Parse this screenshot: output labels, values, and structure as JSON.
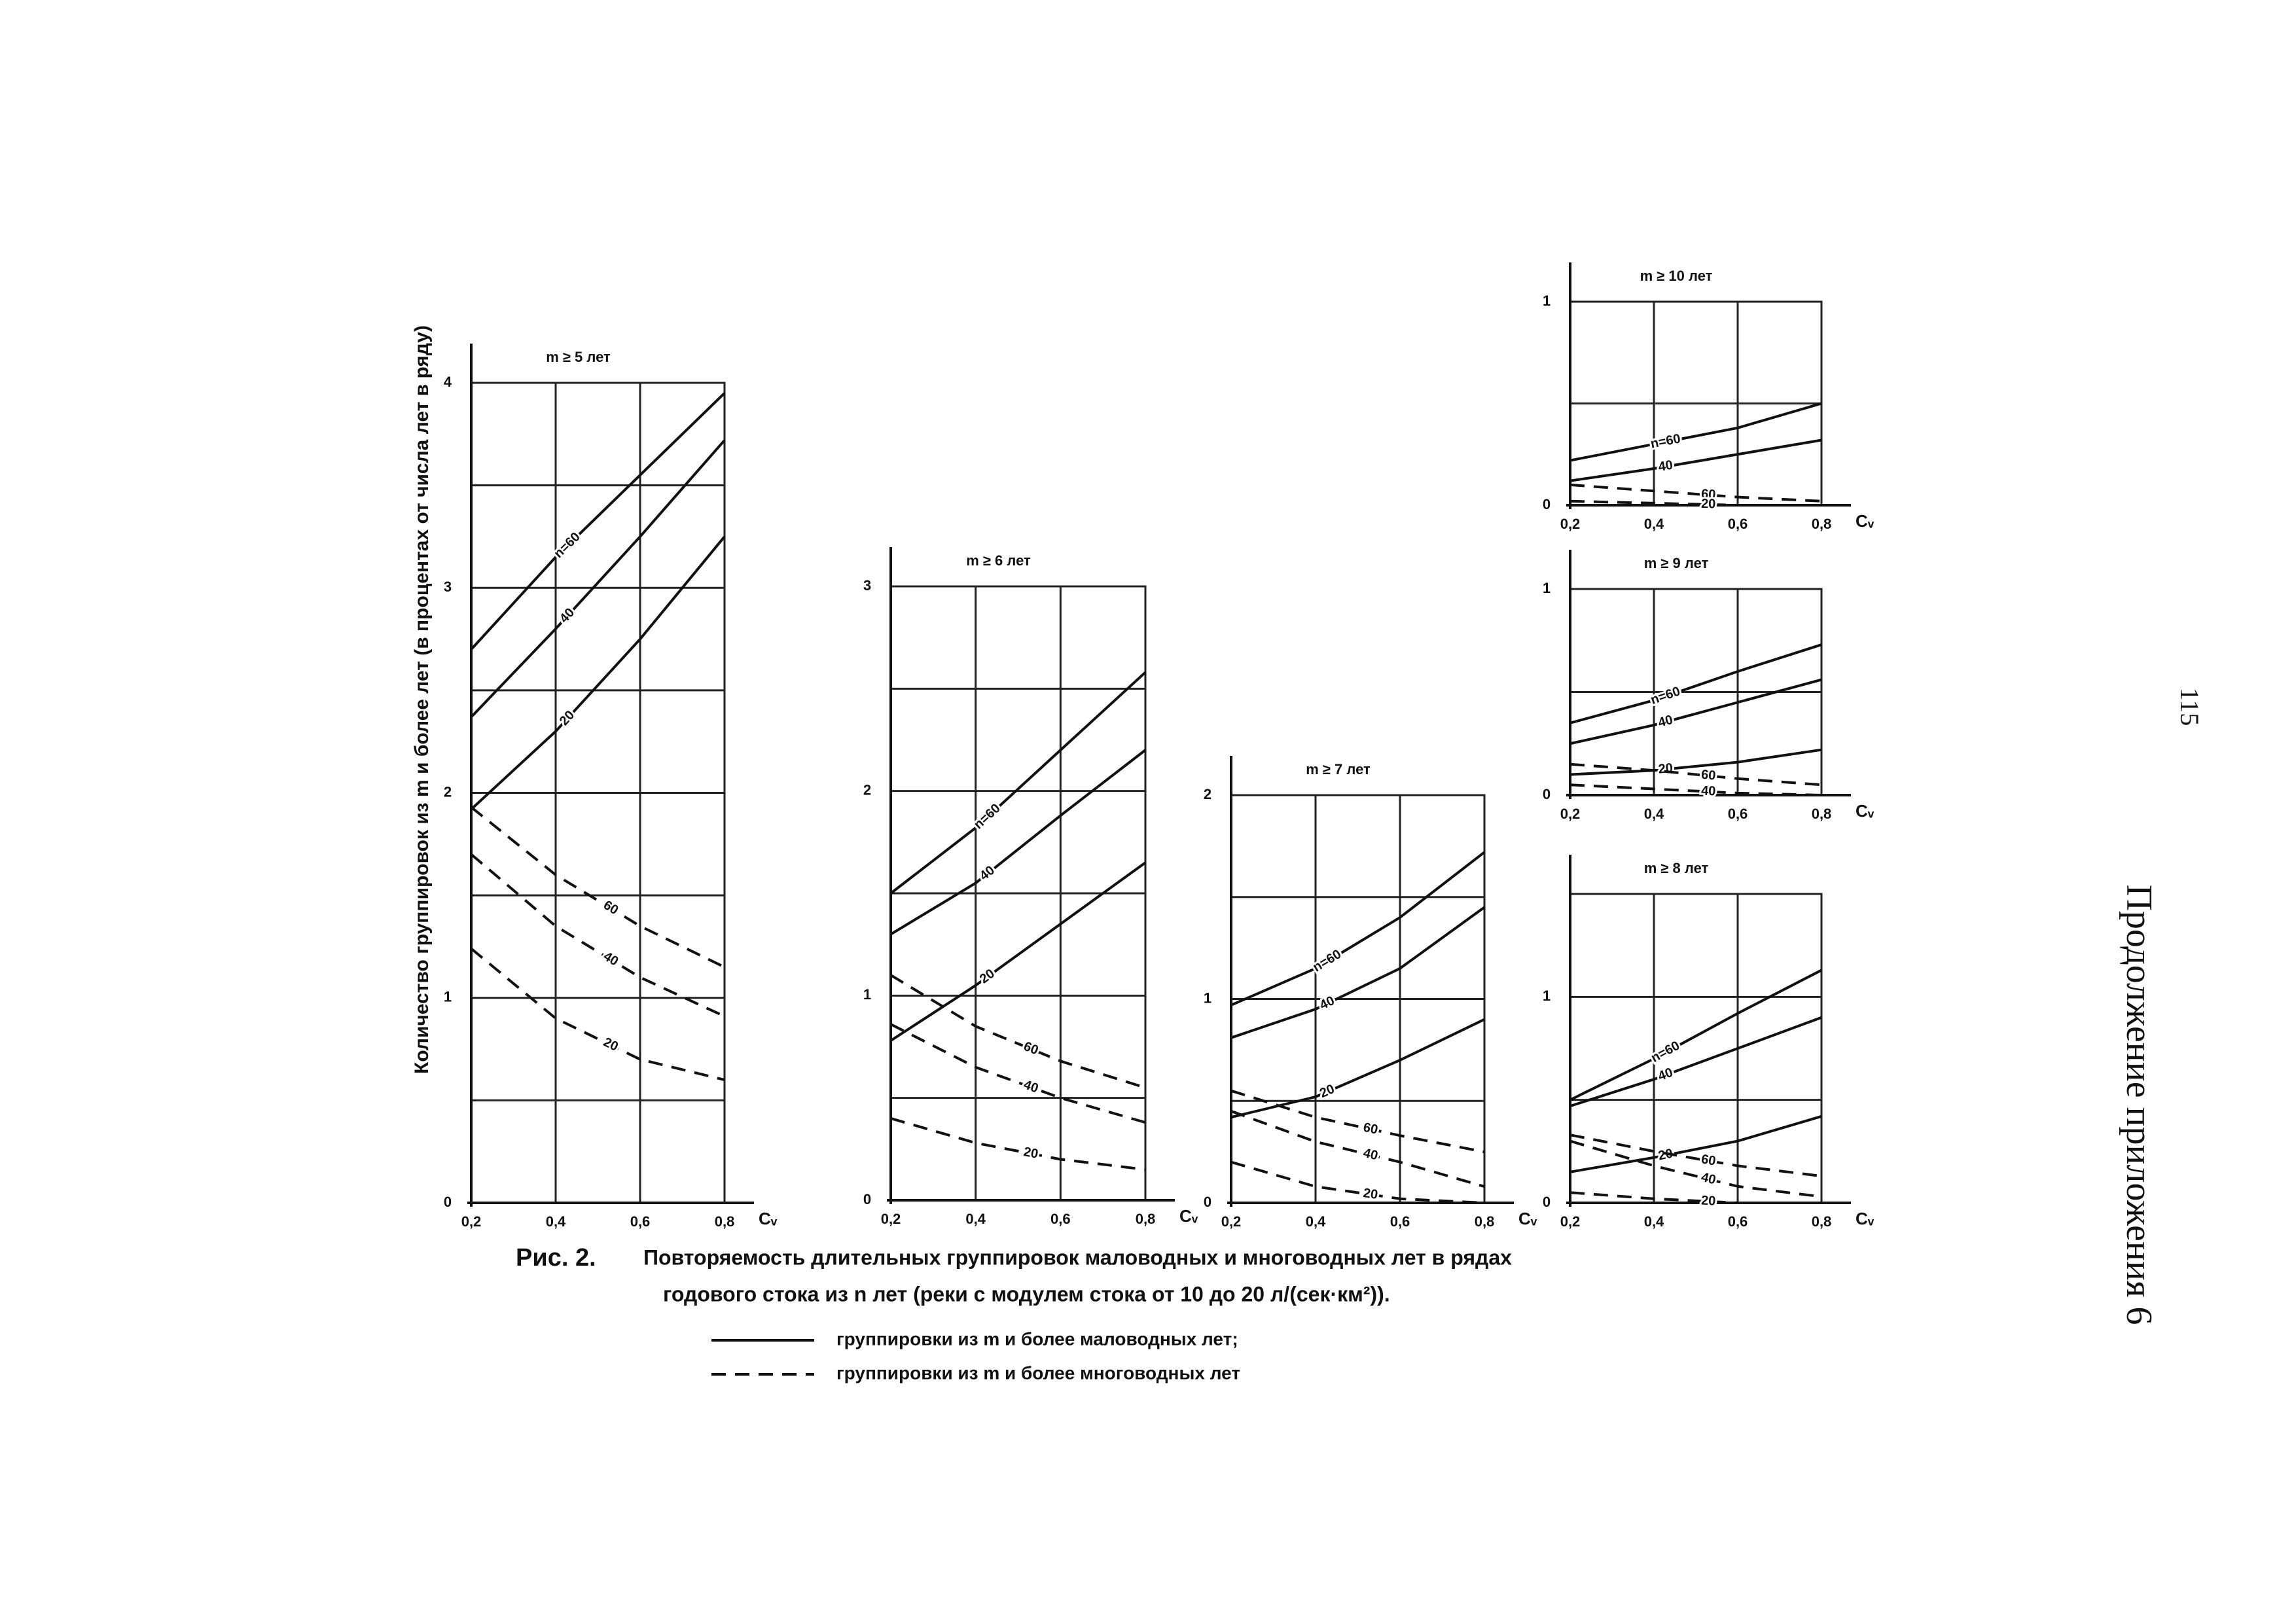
{
  "page": {
    "ylabel": "Количество группировок из m и более лет (в процентах от числа лет в ряду)",
    "figure": "Рис. 2.",
    "caption_line1": "Повторяемость длительных группировок маловодных и многоводных лет в рядах",
    "caption_line2": "годового стока из n лет (реки с модулем стока от 10 до 20 л/(сек·км²)).",
    "legend": [
      {
        "style": "solid",
        "label": "группировки из m и более маловодных лет;"
      },
      {
        "style": "dashed",
        "label": "группировки из m и более многоводных лет"
      }
    ],
    "page_number": "115",
    "running_head": "Продолжение приложения 6"
  },
  "chart_data": [
    {
      "type": "line",
      "title": "m ≥ 5 лет",
      "x": [
        0.2,
        0.4,
        0.6,
        0.8
      ],
      "xlim": [
        0.2,
        0.8
      ],
      "xticks": [
        {
          "value": 0.2,
          "label": "0,2"
        },
        {
          "value": 0.4,
          "label": "0,4"
        },
        {
          "value": 0.6,
          "label": "0,6"
        },
        {
          "value": 0.8,
          "label": "0,8"
        }
      ],
      "xlabel": "Cᵥ",
      "ylim": [
        0,
        4
      ],
      "yticks": [
        0,
        1,
        2,
        3,
        4
      ],
      "ygrid": [
        0.5,
        1.5,
        2.5,
        3.5
      ],
      "grid": true,
      "series": [
        {
          "name": "n=60",
          "color": "#111111",
          "style": "solid",
          "values": [
            2.7,
            3.15,
            3.55,
            3.95
          ]
        },
        {
          "name": "40",
          "color": "#111111",
          "style": "solid",
          "values": [
            2.37,
            2.8,
            3.25,
            3.72
          ]
        },
        {
          "name": "20",
          "color": "#111111",
          "style": "solid",
          "values": [
            1.92,
            2.3,
            2.75,
            3.25
          ]
        },
        {
          "name": "60",
          "color": "#111111",
          "style": "dashed",
          "values": [
            1.93,
            1.6,
            1.35,
            1.15
          ]
        },
        {
          "name": "40",
          "color": "#111111",
          "style": "dashed",
          "values": [
            1.7,
            1.35,
            1.1,
            0.91
          ]
        },
        {
          "name": "20",
          "color": "#111111",
          "style": "dashed",
          "values": [
            1.24,
            0.9,
            0.7,
            0.6
          ]
        }
      ]
    },
    {
      "type": "line",
      "title": "m ≥ 6 лет",
      "x": [
        0.2,
        0.4,
        0.6,
        0.8
      ],
      "xlim": [
        0.2,
        0.8
      ],
      "xticks": [
        {
          "value": 0.2,
          "label": "0,2"
        },
        {
          "value": 0.4,
          "label": "0,4"
        },
        {
          "value": 0.6,
          "label": "0,6"
        },
        {
          "value": 0.8,
          "label": "0,8"
        }
      ],
      "xlabel": "Cᵥ",
      "ylim": [
        0,
        3
      ],
      "yticks": [
        0,
        1,
        2,
        3
      ],
      "ygrid": [
        0.5,
        1.5,
        2.5
      ],
      "grid": true,
      "series": [
        {
          "name": "n=60",
          "color": "#111111",
          "style": "solid",
          "values": [
            1.5,
            1.82,
            2.2,
            2.58
          ]
        },
        {
          "name": "40",
          "color": "#111111",
          "style": "solid",
          "values": [
            1.3,
            1.55,
            1.88,
            2.2
          ]
        },
        {
          "name": "20",
          "color": "#111111",
          "style": "solid",
          "values": [
            0.78,
            1.05,
            1.35,
            1.65
          ]
        },
        {
          "name": "60",
          "color": "#111111",
          "style": "dashed",
          "values": [
            1.1,
            0.85,
            0.68,
            0.55
          ]
        },
        {
          "name": "40",
          "color": "#111111",
          "style": "dashed",
          "values": [
            0.86,
            0.65,
            0.5,
            0.38
          ]
        },
        {
          "name": "20",
          "color": "#111111",
          "style": "dashed",
          "values": [
            0.4,
            0.28,
            0.2,
            0.15
          ]
        }
      ]
    },
    {
      "type": "line",
      "title": "m ≥ 7 лет",
      "x": [
        0.2,
        0.4,
        0.6,
        0.8
      ],
      "xlim": [
        0.2,
        0.8
      ],
      "xticks": [
        {
          "value": 0.2,
          "label": "0,2"
        },
        {
          "value": 0.4,
          "label": "0,4"
        },
        {
          "value": 0.6,
          "label": "0,6"
        },
        {
          "value": 0.8,
          "label": "0,8"
        }
      ],
      "xlabel": "Cᵥ",
      "ylim": [
        0,
        2
      ],
      "yticks": [
        0,
        1,
        2
      ],
      "ygrid": [
        0.5,
        1.5
      ],
      "grid": true,
      "series": [
        {
          "name": "n=60",
          "color": "#111111",
          "style": "solid",
          "values": [
            0.97,
            1.15,
            1.4,
            1.72
          ]
        },
        {
          "name": "40",
          "color": "#111111",
          "style": "solid",
          "values": [
            0.81,
            0.95,
            1.15,
            1.45
          ]
        },
        {
          "name": "20",
          "color": "#111111",
          "style": "solid",
          "values": [
            0.42,
            0.52,
            0.7,
            0.9
          ]
        },
        {
          "name": "60",
          "color": "#111111",
          "style": "dashed",
          "values": [
            0.55,
            0.42,
            0.33,
            0.25
          ]
        },
        {
          "name": "40",
          "color": "#111111",
          "style": "dashed",
          "values": [
            0.45,
            0.3,
            0.2,
            0.08
          ]
        },
        {
          "name": "20",
          "color": "#111111",
          "style": "dashed",
          "values": [
            0.2,
            0.08,
            0.02,
            0
          ]
        }
      ]
    },
    {
      "type": "line",
      "title": "m ≥ 10 лет",
      "x": [
        0.2,
        0.4,
        0.6,
        0.8
      ],
      "xlim": [
        0.2,
        0.8
      ],
      "xticks": [
        {
          "value": 0.2,
          "label": "0,2"
        },
        {
          "value": 0.4,
          "label": "0,4"
        },
        {
          "value": 0.6,
          "label": "0,6"
        },
        {
          "value": 0.8,
          "label": "0,8"
        }
      ],
      "xlabel": "Cᵥ",
      "ylim": [
        0,
        1
      ],
      "yticks": [
        0,
        1
      ],
      "ygrid": [
        0.5
      ],
      "grid": true,
      "series": [
        {
          "name": "n=60",
          "color": "#111111",
          "style": "solid",
          "values": [
            0.22,
            0.3,
            0.38,
            0.5
          ]
        },
        {
          "name": "40",
          "color": "#111111",
          "style": "solid",
          "values": [
            0.12,
            0.18,
            0.25,
            0.32
          ]
        },
        {
          "name": "60",
          "color": "#111111",
          "style": "dashed",
          "values": [
            0.1,
            0.07,
            0.04,
            0.02
          ]
        },
        {
          "name": "20",
          "color": "#111111",
          "style": "dashed",
          "values": [
            0.02,
            0.01,
            0,
            0
          ]
        }
      ]
    },
    {
      "type": "line",
      "title": "m ≥ 9 лет",
      "x": [
        0.2,
        0.4,
        0.6,
        0.8
      ],
      "xlim": [
        0.2,
        0.8
      ],
      "xticks": [
        {
          "value": 0.2,
          "label": "0,2"
        },
        {
          "value": 0.4,
          "label": "0,4"
        },
        {
          "value": 0.6,
          "label": "0,6"
        },
        {
          "value": 0.8,
          "label": "0,8"
        }
      ],
      "xlabel": "Cᵥ",
      "ylim": [
        0,
        1
      ],
      "yticks": [
        0,
        1
      ],
      "ygrid": [
        0.5
      ],
      "grid": true,
      "series": [
        {
          "name": "n=60",
          "color": "#111111",
          "style": "solid",
          "values": [
            0.35,
            0.46,
            0.6,
            0.73
          ]
        },
        {
          "name": "40",
          "color": "#111111",
          "style": "solid",
          "values": [
            0.25,
            0.34,
            0.45,
            0.56
          ]
        },
        {
          "name": "20",
          "color": "#111111",
          "style": "solid",
          "values": [
            0.1,
            0.12,
            0.16,
            0.22
          ]
        },
        {
          "name": "60",
          "color": "#111111",
          "style": "dashed",
          "values": [
            0.15,
            0.12,
            0.08,
            0.05
          ]
        },
        {
          "name": "40",
          "color": "#111111",
          "style": "dashed",
          "values": [
            0.05,
            0.03,
            0.01,
            0
          ]
        }
      ]
    },
    {
      "type": "line",
      "title": "m ≥ 8 лет",
      "x": [
        0.2,
        0.4,
        0.6,
        0.8
      ],
      "xlim": [
        0.2,
        0.8
      ],
      "xticks": [
        {
          "value": 0.2,
          "label": "0,2"
        },
        {
          "value": 0.4,
          "label": "0,4"
        },
        {
          "value": 0.6,
          "label": "0,6"
        },
        {
          "value": 0.8,
          "label": "0,8"
        }
      ],
      "xlabel": "Cᵥ",
      "ylim": [
        0,
        1.5
      ],
      "yticks": [
        0,
        1
      ],
      "ygrid": [
        0.5
      ],
      "grid": true,
      "series": [
        {
          "name": "n=60",
          "color": "#111111",
          "style": "solid",
          "values": [
            0.5,
            0.7,
            0.92,
            1.13
          ]
        },
        {
          "name": "40",
          "color": "#111111",
          "style": "solid",
          "values": [
            0.47,
            0.6,
            0.75,
            0.9
          ]
        },
        {
          "name": "20",
          "color": "#111111",
          "style": "solid",
          "values": [
            0.15,
            0.22,
            0.3,
            0.42
          ]
        },
        {
          "name": "60",
          "color": "#111111",
          "style": "dashed",
          "values": [
            0.33,
            0.25,
            0.18,
            0.13
          ]
        },
        {
          "name": "40",
          "color": "#111111",
          "style": "dashed",
          "values": [
            0.3,
            0.18,
            0.08,
            0.03
          ]
        },
        {
          "name": "20",
          "color": "#111111",
          "style": "dashed",
          "values": [
            0.05,
            0.02,
            0,
            0
          ]
        }
      ]
    }
  ]
}
